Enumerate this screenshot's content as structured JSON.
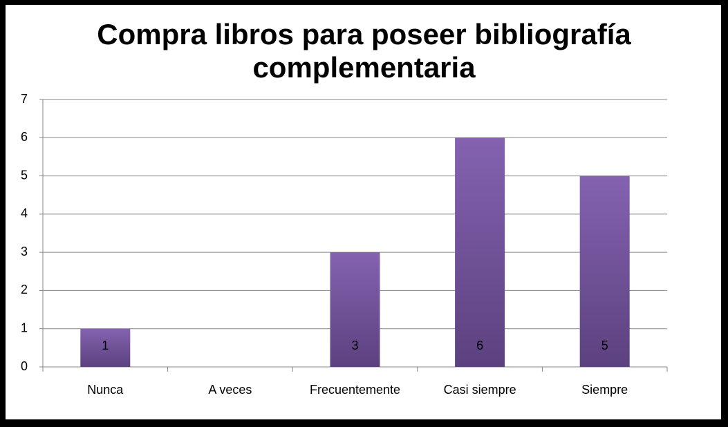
{
  "chart_data": {
    "type": "bar",
    "title": "Compra libros para poseer bibliografía complementaria",
    "categories": [
      "Nunca",
      "A veces",
      "Frecuentemente",
      "Casi siempre",
      "Siempre"
    ],
    "values": [
      1,
      0,
      3,
      6,
      5
    ],
    "color": "#7a5aa6",
    "ylim": [
      0,
      7
    ],
    "yticks": [
      0,
      1,
      2,
      3,
      4,
      5,
      6,
      7
    ],
    "grid": true
  }
}
